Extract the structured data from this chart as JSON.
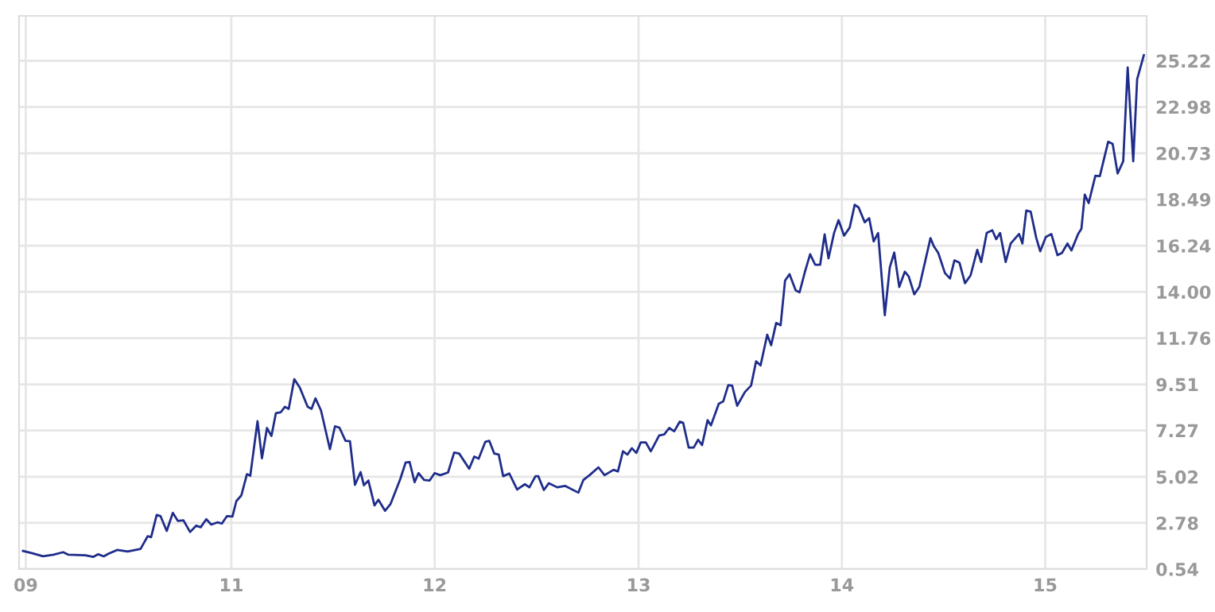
{
  "chart_data": {
    "type": "line",
    "grid": true,
    "marker": "none",
    "line_style": "solid",
    "xlim": [
      "2009-12-16",
      "2015-07-02"
    ],
    "ylim": [
      0.54,
      27.4
    ],
    "xticks": [
      {
        "value": "2009-12-28",
        "label": "09"
      },
      {
        "value": "2011-01-01",
        "label": "11"
      },
      {
        "value": "2012-01-01",
        "label": "12"
      },
      {
        "value": "2013-01-01",
        "label": "13"
      },
      {
        "value": "2014-01-01",
        "label": "14"
      },
      {
        "value": "2015-01-01",
        "label": "15"
      }
    ],
    "yticks": [
      0.54,
      2.78,
      5.02,
      7.27,
      9.51,
      11.76,
      {
        "value": 14.0,
        "label": "14.00"
      },
      16.24,
      18.49,
      20.73,
      22.98,
      25.22
    ],
    "series": [
      {
        "color": "#1f2d8a",
        "x": [
          "2009-12-23",
          "2010-01-09",
          "2010-01-28",
          "2010-02-16",
          "2010-03-05",
          "2010-03-14",
          "2010-04-14",
          "2010-04-28",
          "2010-05-07",
          "2010-05-17",
          "2010-05-26",
          "2010-06-10",
          "2010-06-29",
          "2010-07-22",
          "2010-08-04",
          "2010-08-10",
          "2010-08-20",
          "2010-08-27",
          "2010-09-07",
          "2010-09-18",
          "2010-09-27",
          "2010-10-07",
          "2010-10-19",
          "2010-10-30",
          "2010-11-07",
          "2010-11-17",
          "2010-11-26",
          "2010-12-07",
          "2010-12-15",
          "2010-12-24",
          "2011-01-03",
          "2011-01-10",
          "2011-01-19",
          "2011-01-29",
          "2011-02-04",
          "2011-02-17",
          "2011-02-25",
          "2011-03-06",
          "2011-03-14",
          "2011-03-22",
          "2011-03-31",
          "2011-04-07",
          "2011-04-14",
          "2011-04-24",
          "2011-05-04",
          "2011-05-18",
          "2011-05-25",
          "2011-06-01",
          "2011-06-11",
          "2011-06-27",
          "2011-07-06",
          "2011-07-14",
          "2011-07-25",
          "2011-08-02",
          "2011-08-11",
          "2011-08-21",
          "2011-08-27",
          "2011-09-04",
          "2011-09-15",
          "2011-09-22",
          "2011-10-04",
          "2011-10-14",
          "2011-10-31",
          "2011-11-10",
          "2011-11-17",
          "2011-11-26",
          "2011-12-03",
          "2011-12-13",
          "2011-12-23",
          "2012-01-01",
          "2012-01-11",
          "2012-01-25",
          "2012-02-05",
          "2012-02-14",
          "2012-03-03",
          "2012-03-12",
          "2012-03-20",
          "2012-04-01",
          "2012-04-08",
          "2012-04-17",
          "2012-04-25",
          "2012-05-03",
          "2012-05-14",
          "2012-05-28",
          "2012-06-11",
          "2012-06-19",
          "2012-06-30",
          "2012-07-05",
          "2012-07-15",
          "2012-07-24",
          "2012-08-08",
          "2012-08-22",
          "2012-09-15",
          "2012-09-24",
          "2012-10-05",
          "2012-10-21",
          "2012-11-01",
          "2012-11-17",
          "2012-11-25",
          "2012-12-04",
          "2012-12-12",
          "2012-12-20",
          "2012-12-28",
          "2013-01-05",
          "2013-01-14",
          "2013-01-23",
          "2013-02-07",
          "2013-02-16",
          "2013-02-25",
          "2013-03-06",
          "2013-03-16",
          "2013-03-22",
          "2013-04-01",
          "2013-04-10",
          "2013-04-18",
          "2013-04-25",
          "2013-05-05",
          "2013-05-11",
          "2013-05-25",
          "2013-06-02",
          "2013-06-11",
          "2013-06-18",
          "2013-06-27",
          "2013-07-11",
          "2013-07-22",
          "2013-07-31",
          "2013-08-08",
          "2013-08-20",
          "2013-08-27",
          "2013-09-05",
          "2013-09-13",
          "2013-09-21",
          "2013-09-29",
          "2013-10-10",
          "2013-10-17",
          "2013-10-27",
          "2013-11-05",
          "2013-11-14",
          "2013-11-23",
          "2013-12-01",
          "2013-12-08",
          "2013-12-18",
          "2013-12-26",
          "2014-01-05",
          "2014-01-15",
          "2014-01-24",
          "2014-01-31",
          "2014-02-11",
          "2014-02-19",
          "2014-02-27",
          "2014-03-07",
          "2014-03-19",
          "2014-03-28",
          "2014-04-05",
          "2014-04-14",
          "2014-04-24",
          "2014-05-01",
          "2014-05-11",
          "2014-05-20",
          "2014-06-09",
          "2014-06-15",
          "2014-06-23",
          "2014-07-05",
          "2014-07-14",
          "2014-07-22",
          "2014-07-31",
          "2014-08-10",
          "2014-08-20",
          "2014-09-01",
          "2014-09-08",
          "2014-09-18",
          "2014-09-28",
          "2014-10-05",
          "2014-10-12",
          "2014-10-22",
          "2014-10-31",
          "2014-11-15",
          "2014-11-21",
          "2014-11-28",
          "2014-12-06",
          "2014-12-16",
          "2014-12-23",
          "2015-01-02",
          "2015-01-12",
          "2015-01-23",
          "2015-01-31",
          "2015-02-10",
          "2015-02-17",
          "2015-03-01",
          "2015-03-07",
          "2015-03-13",
          "2015-03-20",
          "2015-04-01",
          "2015-04-09",
          "2015-04-24",
          "2015-05-02",
          "2015-05-11",
          "2015-05-21",
          "2015-05-29",
          "2015-06-08",
          "2015-06-15",
          "2015-06-27"
        ],
        "values": [
          1.42,
          1.31,
          1.16,
          1.24,
          1.36,
          1.24,
          1.21,
          1.13,
          1.26,
          1.16,
          1.29,
          1.47,
          1.39,
          1.52,
          2.14,
          2.09,
          3.17,
          3.11,
          2.39,
          3.27,
          2.88,
          2.91,
          2.34,
          2.65,
          2.57,
          2.96,
          2.7,
          2.81,
          2.75,
          3.11,
          3.09,
          3.84,
          4.12,
          5.15,
          5.07,
          7.72,
          5.92,
          7.39,
          7.0,
          8.11,
          8.16,
          8.42,
          8.32,
          9.76,
          9.35,
          8.42,
          8.32,
          8.83,
          8.24,
          6.36,
          7.47,
          7.41,
          6.77,
          6.75,
          4.63,
          5.25,
          4.61,
          4.84,
          3.63,
          3.91,
          3.37,
          3.71,
          4.89,
          5.72,
          5.74,
          4.76,
          5.2,
          4.87,
          4.84,
          5.2,
          5.1,
          5.23,
          6.2,
          6.15,
          5.41,
          6.0,
          5.9,
          6.72,
          6.77,
          6.15,
          6.1,
          5.05,
          5.18,
          4.4,
          4.66,
          4.51,
          5.05,
          5.05,
          4.38,
          4.71,
          4.51,
          4.58,
          4.25,
          4.87,
          5.1,
          5.48,
          5.1,
          5.36,
          5.28,
          6.26,
          6.1,
          6.41,
          6.18,
          6.69,
          6.69,
          6.26,
          7.03,
          7.08,
          7.39,
          7.23,
          7.7,
          7.65,
          6.44,
          6.44,
          6.82,
          6.56,
          7.77,
          7.52,
          8.57,
          8.68,
          9.47,
          9.45,
          8.47,
          9.14,
          9.45,
          10.63,
          10.43,
          11.92,
          11.41,
          12.49,
          12.38,
          14.55,
          14.86,
          14.08,
          13.98,
          15.01,
          15.83,
          15.32,
          15.32,
          16.79,
          15.63,
          16.86,
          17.48,
          16.73,
          17.12,
          18.23,
          18.1,
          17.38,
          17.58,
          16.45,
          16.86,
          12.87,
          15.19,
          15.91,
          14.24,
          14.98,
          14.75,
          13.88,
          14.24,
          16.61,
          16.22,
          15.89,
          14.91,
          14.65,
          15.53,
          15.42,
          14.42,
          14.8,
          16.04,
          15.45,
          16.86,
          16.99,
          16.56,
          16.86,
          15.45,
          16.35,
          16.81,
          16.35,
          17.95,
          17.89,
          16.61,
          15.97,
          16.66,
          16.81,
          15.78,
          15.89,
          16.35,
          16.01,
          16.81,
          17.07,
          18.72,
          18.31,
          19.64,
          19.62,
          21.29,
          21.19,
          19.75,
          20.34,
          24.9,
          20.34,
          24.33,
          25.49
        ]
      }
    ]
  }
}
